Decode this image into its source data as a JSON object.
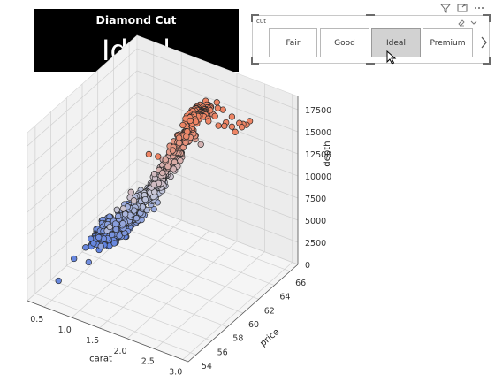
{
  "card": {
    "title": "Diamond Cut",
    "value": "Ideal"
  },
  "header_icons": [
    "filter-icon",
    "focus-mode-icon",
    "more-options-icon"
  ],
  "slicer": {
    "field": "cut",
    "options": [
      "Fair",
      "Good",
      "Ideal",
      "Premium"
    ],
    "selected": "Ideal",
    "tools": [
      "eraser-icon",
      "chevron-down-icon"
    ],
    "nav": "chevron-right-icon"
  },
  "chart_data": {
    "type": "scatter3d",
    "title": "",
    "xlabel": "carat",
    "ylabel": "price",
    "zlabel": "depth",
    "xlim": [
      0.2,
      3.1
    ],
    "ylim": [
      53,
      67
    ],
    "zlim": [
      0,
      19000
    ],
    "x_ticks": [
      "0.5",
      "1.0",
      "1.5",
      "2.0",
      "2.5",
      "3.0"
    ],
    "y_ticks": [
      "54",
      "56",
      "58",
      "60",
      "62",
      "64",
      "66"
    ],
    "z_ticks": [
      "0",
      "2500",
      "5000",
      "7500",
      "10000",
      "12500",
      "15000",
      "17500"
    ],
    "colormap": [
      "#5b7fe0",
      "#c7c9d9",
      "#ee8565"
    ],
    "colormap_by": "depth",
    "marker_edge": "#2a2a2a",
    "n_points": 900,
    "trend": "depth rises with carat; most points between carat 0.3 and 2.0, price 59 to 64"
  }
}
